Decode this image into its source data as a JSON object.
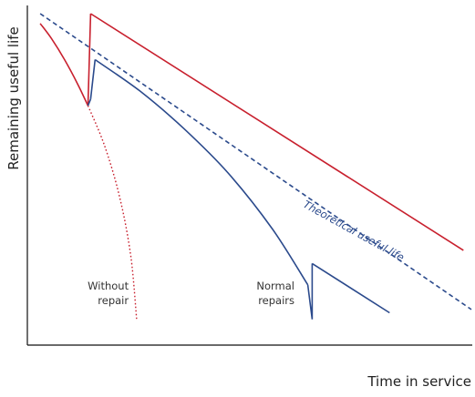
{
  "chart_data": {
    "type": "line",
    "title": "",
    "xlabel": "Time in service",
    "ylabel": "Remaining useful life",
    "xlim": [
      0,
      100
    ],
    "ylim": [
      0,
      100
    ],
    "grid": false,
    "legend": "none",
    "series": [
      {
        "name": "Theoretical useful life",
        "color": "#2b4a8c",
        "style": "dashed",
        "x": [
          2.5,
          100
        ],
        "y": [
          100,
          10
        ]
      },
      {
        "name": "",
        "color": "#c8202e",
        "style": "solid",
        "x": [
          2.5,
          5,
          8,
          11,
          13.3
        ],
        "y": [
          97,
          92.5,
          86,
          78.5,
          72
        ]
      },
      {
        "name": "",
        "color": "#c8202e",
        "style": "solid",
        "x": [
          13.3,
          13.9,
          98.2
        ],
        "y": [
          72,
          100,
          28
        ]
      },
      {
        "name": "",
        "color": "#2b4a8c",
        "style": "solid",
        "x": [
          13.3,
          13.9,
          14.9
        ],
        "y": [
          72,
          74,
          86
        ]
      },
      {
        "name": "",
        "color": "#2b4a8c",
        "style": "solid",
        "x": [
          14.9,
          25,
          35,
          45,
          55,
          63,
          64,
          64
        ],
        "y": [
          86,
          76.5,
          65,
          51.5,
          34.5,
          17.5,
          7,
          24
        ]
      },
      {
        "name": "",
        "color": "#2b4a8c",
        "style": "solid",
        "x": [
          64,
          81.5
        ],
        "y": [
          24,
          9
        ]
      },
      {
        "name": "",
        "color": "#c8202e",
        "style": "dotted",
        "x": [
          13.3,
          17,
          20.5,
          23,
          24.3
        ],
        "y": [
          72,
          60,
          44,
          26,
          7
        ]
      }
    ],
    "annotations": [
      {
        "text": "Theoretical useful life",
        "x": 73,
        "y": 33,
        "angle": 29,
        "color": "#2b4a8c"
      },
      {
        "lines": [
          "Without",
          "repair"
        ],
        "x": 22.5,
        "y": 16,
        "align": "right"
      },
      {
        "lines": [
          "Normal",
          "repairs"
        ],
        "x": 60,
        "y": 16,
        "align": "right"
      }
    ]
  }
}
